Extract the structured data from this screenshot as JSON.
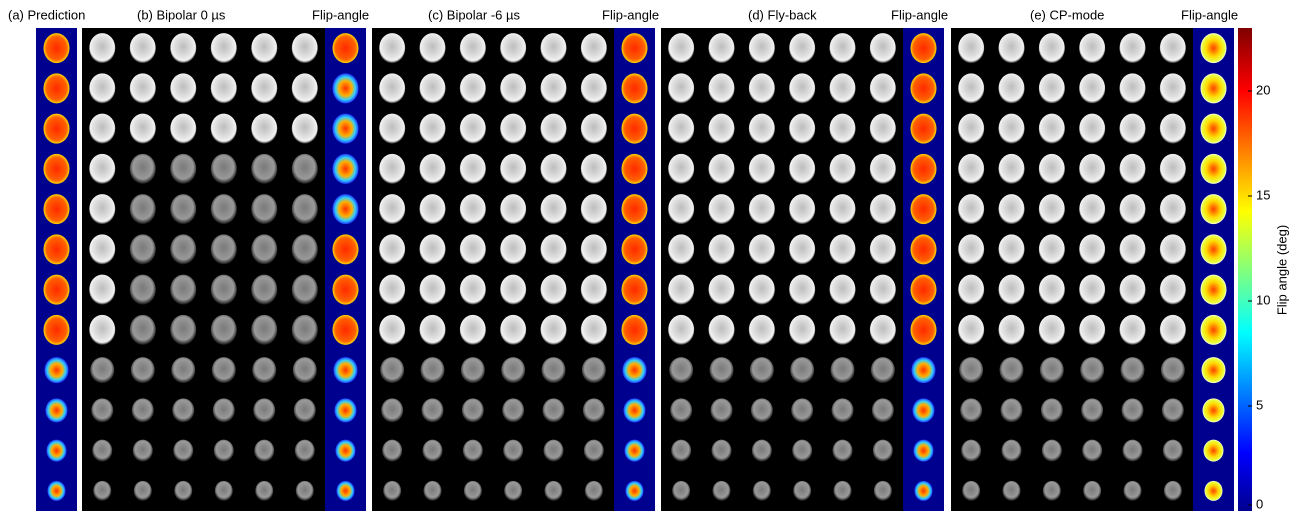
{
  "panels": [
    {
      "title": "(a) Prediction"
    },
    {
      "title": "(b) Bipolar 0 µs",
      "map_title": "Flip-angle"
    },
    {
      "title": "(c) Bipolar -6 µs",
      "map_title": "Flip-angle"
    },
    {
      "title": "(d) Fly-back",
      "map_title": "Flip-angle"
    },
    {
      "title": "(e) CP-mode",
      "map_title": "Flip-angle"
    }
  ],
  "colorbar": {
    "label": "Flip angle (deg)",
    "ylim": [
      0,
      23
    ],
    "yticks": [
      0,
      5,
      10,
      15,
      20
    ]
  }
}
